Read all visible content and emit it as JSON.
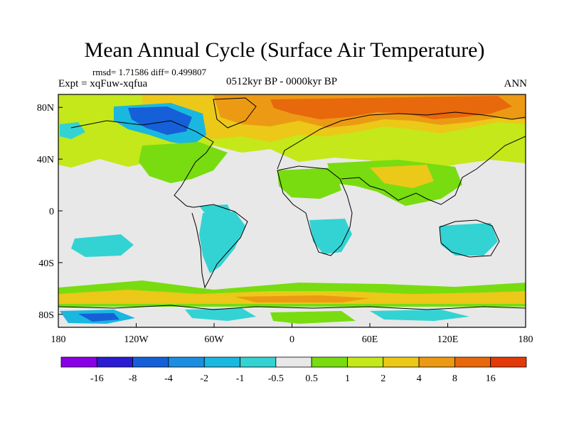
{
  "title": "Mean Annual Cycle (Surface Air Temperature)",
  "stats": "rmsd= 1.71586 diff= 0.499807",
  "experiment": "Expt = xqFuw-xqfua",
  "period": "0512kyr BP - 0000kyr BP",
  "season": "ANN",
  "x_ticks": [
    "180",
    "120W",
    "60W",
    "0",
    "60E",
    "120E",
    "180"
  ],
  "y_ticks": [
    "80N",
    "40N",
    "0",
    "40S",
    "80S"
  ],
  "colorbar": {
    "colors": [
      "#8a00e6",
      "#2a1cd0",
      "#1560d8",
      "#1c8ee0",
      "#1ab7df",
      "#33d3d3",
      "#e8e8e8",
      "#78dc10",
      "#c4e81a",
      "#ecc818",
      "#ec9a14",
      "#e8680c",
      "#e23a08"
    ],
    "labels": [
      "-16",
      "-8",
      "-4",
      "-2",
      "-1",
      "-0.5",
      "0.5",
      "1",
      "2",
      "4",
      "8",
      "16"
    ]
  },
  "map_colors": {
    "neutral": "#e8e8e8",
    "light_green": "#78dc10",
    "yellow_green": "#c4e81a",
    "yellow": "#ecc818",
    "orange": "#ec9a14",
    "dark_orange": "#e8680c",
    "cyan": "#33d3d3",
    "light_blue": "#1ab7df",
    "blue": "#1c8ee0",
    "deep_blue": "#1560d8"
  }
}
